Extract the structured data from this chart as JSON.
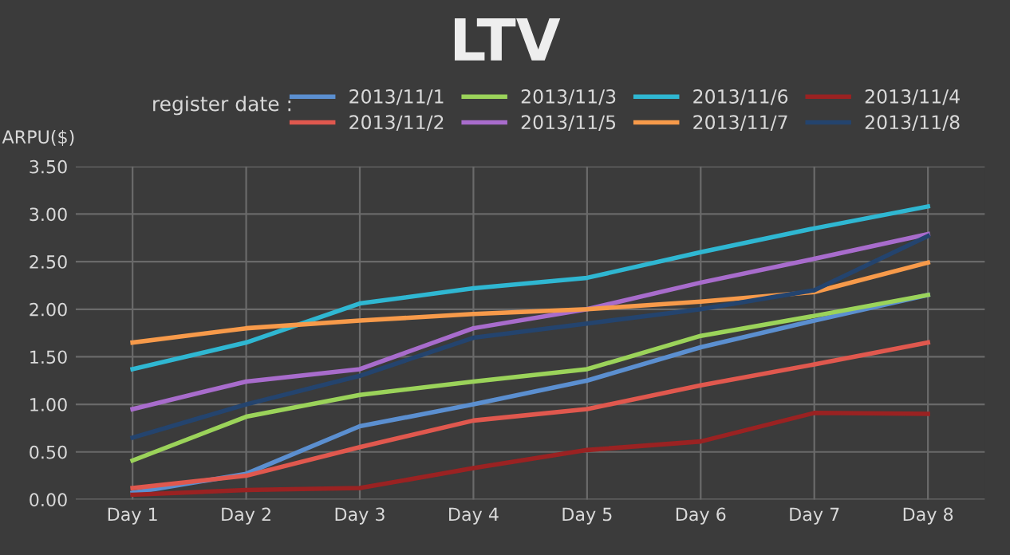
{
  "chart_data": {
    "type": "line",
    "title": "LTV",
    "ylabel": "ARPU($)",
    "legend_title": "register date :",
    "categories": [
      "Day 1",
      "Day 2",
      "Day 3",
      "Day 4",
      "Day 5",
      "Day 6",
      "Day 7",
      "Day 8"
    ],
    "series": [
      {
        "name": "2013/11/1",
        "color": "#5b8fd0",
        "values": [
          0.07,
          0.27,
          0.77,
          1.0,
          1.25,
          1.6,
          1.88,
          2.15
        ]
      },
      {
        "name": "2013/11/2",
        "color": "#e0584e",
        "values": [
          0.12,
          0.25,
          0.55,
          0.83,
          0.95,
          1.2,
          1.42,
          1.65
        ]
      },
      {
        "name": "2013/11/3",
        "color": "#9bd35a",
        "values": [
          0.41,
          0.87,
          1.1,
          1.24,
          1.37,
          1.72,
          1.93,
          2.15
        ]
      },
      {
        "name": "2013/11/5",
        "color": "#a86ccc",
        "values": [
          0.95,
          1.24,
          1.37,
          1.8,
          2.0,
          2.28,
          2.53,
          2.79
        ]
      },
      {
        "name": "2013/11/6",
        "color": "#2fb7d2",
        "values": [
          1.37,
          1.65,
          2.06,
          2.22,
          2.33,
          2.6,
          2.85,
          3.08
        ]
      },
      {
        "name": "2013/11/7",
        "color": "#f79a4a",
        "values": [
          1.65,
          1.8,
          1.88,
          1.95,
          2.0,
          2.08,
          2.18,
          2.49
        ]
      },
      {
        "name": "2013/11/4",
        "color": "#9a2222",
        "values": [
          0.05,
          0.1,
          0.12,
          0.33,
          0.52,
          0.61,
          0.91,
          0.9
        ]
      },
      {
        "name": "2013/11/8",
        "color": "#24446e",
        "values": [
          0.65,
          1.0,
          1.3,
          1.7,
          1.85,
          2.0,
          2.2,
          2.77
        ]
      }
    ],
    "ylim": [
      0,
      3.5
    ],
    "yticks": [
      {
        "value": 0,
        "label": "0.00"
      },
      {
        "value": 0.5,
        "label": "0.50"
      },
      {
        "value": 1,
        "label": "1.00"
      },
      {
        "value": 1.5,
        "label": "1.50"
      },
      {
        "value": 2,
        "label": "2.00"
      },
      {
        "value": 2.5,
        "label": "2.50"
      },
      {
        "value": 3,
        "label": "3.00"
      },
      {
        "value": 3.5,
        "label": "3.50"
      }
    ],
    "grid": true,
    "legend": "top",
    "marker": "none",
    "line_style": "solid"
  }
}
